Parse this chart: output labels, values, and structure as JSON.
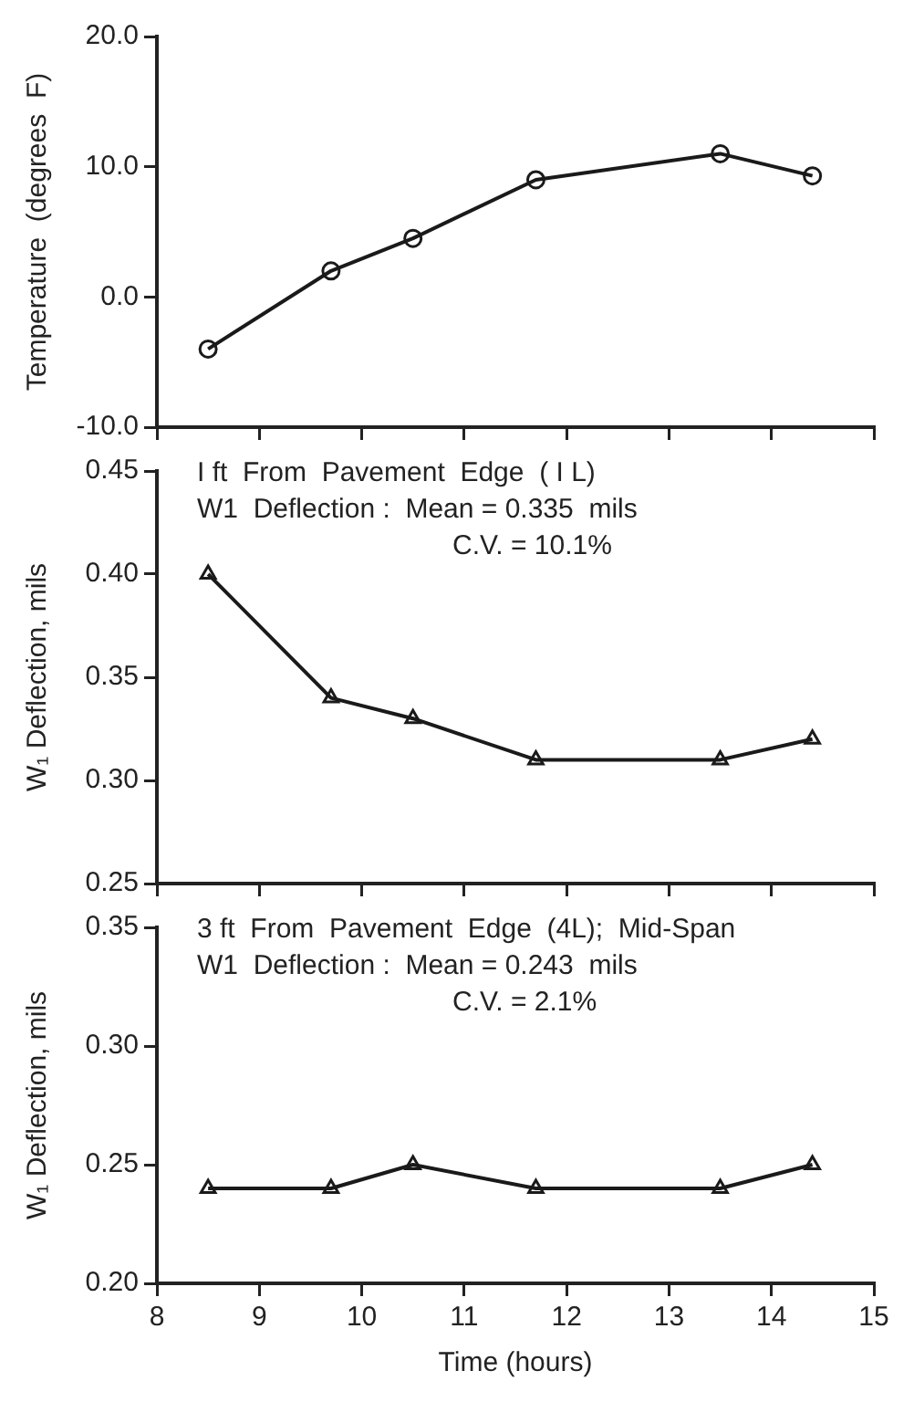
{
  "chart_data": [
    {
      "type": "line",
      "ylabel": "Temperature  (degrees  F)",
      "x": [
        8.5,
        9.7,
        10.5,
        11.7,
        13.5,
        14.4
      ],
      "series": [
        {
          "color": "#1a1a1a",
          "values": [
            -4,
            2,
            4.5,
            9,
            11,
            9.3
          ]
        }
      ],
      "xlim": [
        8,
        15
      ],
      "xticks": [
        {
          "value": 8,
          "label": null
        },
        {
          "value": 9,
          "label": null
        },
        {
          "value": 10,
          "label": null
        },
        {
          "value": 11,
          "label": null
        },
        {
          "value": 12,
          "label": null
        },
        {
          "value": 13,
          "label": null
        },
        {
          "value": 14,
          "label": null
        },
        {
          "value": 15,
          "label": null
        }
      ],
      "ylim": [
        -10,
        20
      ],
      "yticks": [
        {
          "value": -10,
          "label": "-10.0"
        },
        {
          "value": 0,
          "label": "0.0"
        },
        {
          "value": 10,
          "label": "10.0"
        },
        {
          "value": 20,
          "label": "20.0"
        }
      ],
      "tick_labels": "y",
      "grid": false,
      "legend": false,
      "marker": "circle",
      "line_style": "solid"
    },
    {
      "type": "line",
      "ylabel": "W₁ Deflection, mils",
      "x": [
        8.5,
        9.7,
        10.5,
        11.7,
        13.5,
        14.4
      ],
      "series": [
        {
          "color": "#1a1a1a",
          "values": [
            0.4,
            0.34,
            0.33,
            0.31,
            0.31,
            0.32
          ]
        }
      ],
      "annotations": [
        "I ft  From  Pavement  Edge  ( I L)",
        "W1  Deflection :  Mean = 0.335  mils",
        "C.V. = 10.1%"
      ],
      "xlim": [
        8,
        15
      ],
      "xticks": [
        {
          "value": 8,
          "label": null
        },
        {
          "value": 9,
          "label": null
        },
        {
          "value": 10,
          "label": null
        },
        {
          "value": 11,
          "label": null
        },
        {
          "value": 12,
          "label": null
        },
        {
          "value": 13,
          "label": null
        },
        {
          "value": 14,
          "label": null
        },
        {
          "value": 15,
          "label": null
        }
      ],
      "ylim": [
        0.25,
        0.45
      ],
      "yticks": [
        0.25,
        {
          "value": 0.3,
          "label": "0.30"
        },
        0.35,
        {
          "value": 0.4,
          "label": "0.40"
        },
        0.45
      ],
      "tick_labels": "y",
      "grid": false,
      "legend": false,
      "marker": "triangle",
      "line_style": "solid"
    },
    {
      "type": "line",
      "ylabel": "W₁ Deflection, mils",
      "xlabel": "Time (hours)",
      "x": [
        8.5,
        9.7,
        10.5,
        11.7,
        13.5,
        14.4
      ],
      "series": [
        {
          "color": "#1a1a1a",
          "values": [
            0.24,
            0.24,
            0.25,
            0.24,
            0.24,
            0.25
          ]
        }
      ],
      "annotations": [
        "3 ft  From  Pavement  Edge  (4L);  Mid-Span",
        "W1  Deflection :  Mean = 0.243  mils",
        "C.V. = 2.1%"
      ],
      "xlim": [
        8,
        15
      ],
      "xticks": [
        8,
        9,
        10,
        11,
        12,
        13,
        14,
        15
      ],
      "ylim": [
        0.2,
        0.35
      ],
      "yticks": [
        {
          "value": 0.2,
          "label": "0.20"
        },
        0.25,
        {
          "value": 0.3,
          "label": "0.30"
        },
        0.35
      ],
      "grid": false,
      "legend": false,
      "marker": "triangle",
      "line_style": "solid"
    }
  ]
}
